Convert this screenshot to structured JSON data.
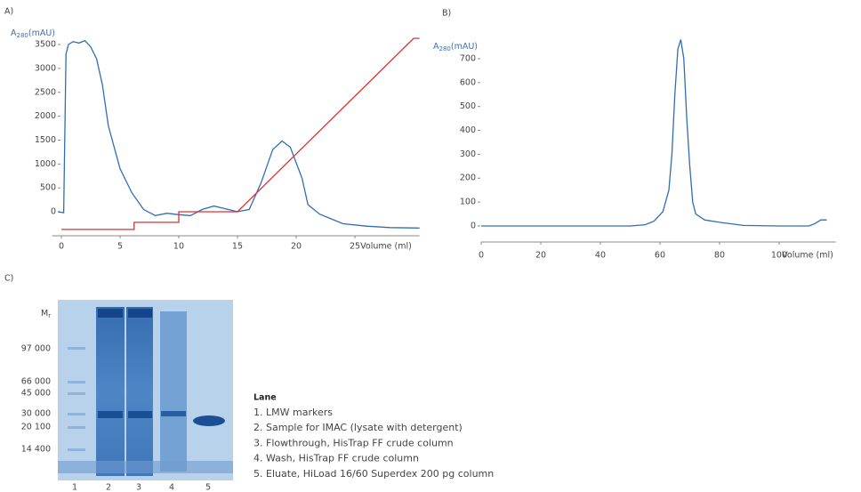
{
  "chart_data": [
    {
      "type": "line",
      "title": "A)",
      "ylabel": {
        "main": "A",
        "sub": "280",
        "unit": "(mAU)"
      },
      "xlabel": "Volume (ml)",
      "xlim": [
        -0.8,
        30.5
      ],
      "ylim": [
        -500,
        3700
      ],
      "xticks": [
        0,
        5,
        10,
        15,
        20,
        25
      ],
      "yticks": [
        0,
        500,
        1000,
        1500,
        2000,
        2500,
        3000,
        3500
      ],
      "series": [
        {
          "color": "#2f6db5",
          "x": [
            -0.3,
            0.2,
            0.4,
            0.6,
            1,
            1.5,
            2,
            2.5,
            3,
            3.5,
            4,
            5,
            6,
            7,
            8,
            9,
            10,
            11,
            12,
            13,
            14,
            15,
            16,
            17,
            18,
            18.8,
            19.5,
            20.5,
            21,
            22,
            23,
            24,
            26,
            28,
            30.5
          ],
          "values": [
            0,
            -20,
            3300,
            3500,
            3560,
            3530,
            3580,
            3450,
            3200,
            2650,
            1800,
            900,
            400,
            50,
            -80,
            -30,
            -60,
            -80,
            50,
            120,
            60,
            0,
            50,
            600,
            1300,
            1480,
            1350,
            700,
            150,
            -50,
            -150,
            -250,
            -300,
            -330,
            -340
          ]
        },
        {
          "color": "#e0312f",
          "x": [
            0,
            6.2,
            6.2,
            10,
            10,
            15,
            30,
            30.5
          ],
          "values": [
            -370,
            -370,
            -220,
            -220,
            0,
            0,
            3630,
            3630
          ]
        }
      ]
    },
    {
      "type": "line",
      "title": "B)",
      "ylabel": {
        "main": "A",
        "sub": "280",
        "unit": "(mAU)"
      },
      "xlabel": "Volume (ml)",
      "xlim": [
        0,
        119
      ],
      "ylim": [
        -40,
        790
      ],
      "xticks": [
        0,
        20,
        40,
        60,
        80,
        100
      ],
      "yticks": [
        0,
        100,
        200,
        300,
        400,
        500,
        600,
        700
      ],
      "series": [
        {
          "color": "#2f6db5",
          "x": [
            0,
            50,
            55,
            58,
            61,
            63,
            64,
            65,
            66,
            67,
            68,
            69,
            70,
            71,
            72,
            75,
            80,
            88,
            100,
            110,
            112,
            114,
            116
          ],
          "values": [
            0,
            0,
            5,
            20,
            60,
            150,
            300,
            550,
            740,
            780,
            700,
            450,
            250,
            100,
            50,
            25,
            15,
            2,
            0,
            0,
            10,
            25,
            25
          ]
        }
      ]
    }
  ],
  "gel": {
    "title": "C)",
    "mr": {
      "main": "M",
      "sub": "r"
    },
    "markers": [
      "97 000",
      "66 000",
      "45 000",
      "30 000",
      "20 100",
      "14 400"
    ],
    "lanes": [
      "1",
      "2",
      "3",
      "4",
      "5"
    ],
    "legend_title": "Lane",
    "legend": [
      "1. LMW  markers",
      "2. Sample for IMAC (lysate with detergent)",
      "3. Flowthrough, HisTrap FF crude column",
      "4. Wash, HisTrap FF crude column",
      "5. Eluate, HiLoad 16/60 Superdex 200 pg column"
    ]
  }
}
